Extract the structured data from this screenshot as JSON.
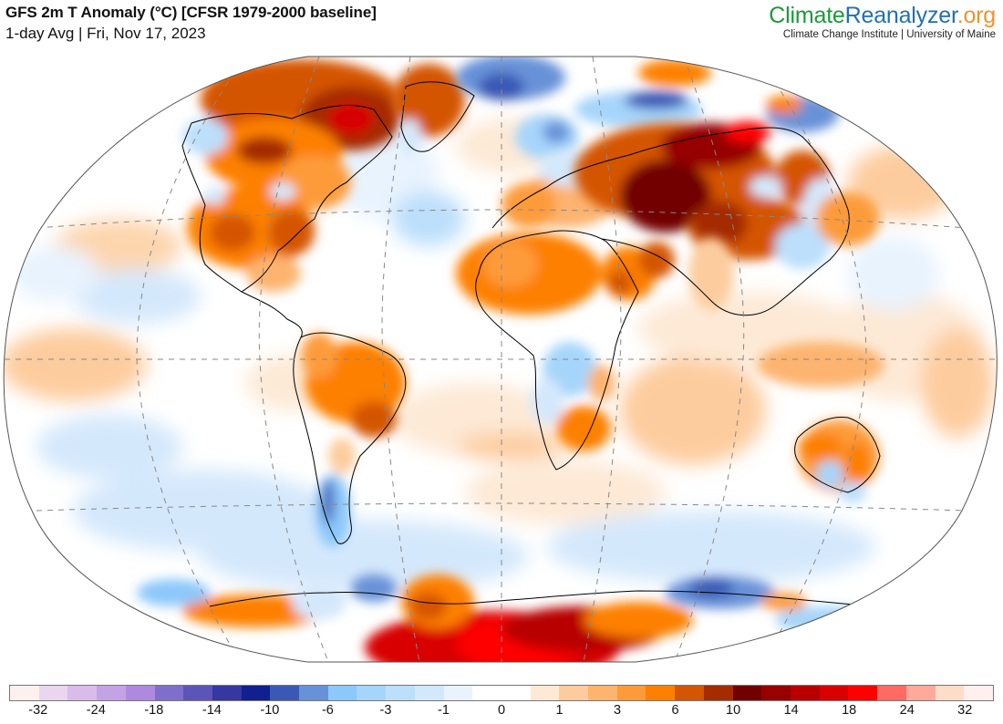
{
  "header": {
    "title": "GFS 2m T Anomaly (°C) [CFSR 1979-2000 baseline]",
    "subtitle": "1-day Avg | Fri, Nov 17, 2023"
  },
  "brand": {
    "logo_part1": "Climate",
    "logo_part2": "Reanalyzer",
    "logo_part3": ".org",
    "tagline": "Climate Change Institute | University of Maine",
    "colors": {
      "climate": "#1a9a3a",
      "reanalyzer": "#1f6fb8",
      "org": "#f2922b"
    }
  },
  "map": {
    "projection": "Winkel Tripel / Robinson-like world",
    "variable": "2m temperature anomaly",
    "units": "°C",
    "grid_lines": "dashed gray graticule",
    "regions": [
      {
        "name": "Central Asia / Kazakhstan",
        "anomaly": "strong warm (+10 to +18)"
      },
      {
        "name": "Canadian Arctic Archipelago",
        "anomaly": "strong warm (+10 to +18)"
      },
      {
        "name": "Antarctica interior",
        "anomaly": "very warm (+14 to +18)"
      },
      {
        "name": "Scandinavia / Barents Sea",
        "anomaly": "cold (-6 to -14)"
      },
      {
        "name": "Eastern Siberia",
        "anomaly": "cold (-3 to -10)"
      },
      {
        "name": "Central & Eastern USA",
        "anomaly": "warm (+3 to +10)"
      },
      {
        "name": "North Africa / Sahara",
        "anomaly": "warm (+3 to +6)"
      },
      {
        "name": "Brazil",
        "anomaly": "warm (+3 to +10)"
      },
      {
        "name": "Patagonia",
        "anomaly": "cold (-3 to -10)"
      },
      {
        "name": "Central Africa (Congo)",
        "anomaly": "cool (-1 to -3)"
      },
      {
        "name": "Australia interior",
        "anomaly": "mixed: warm north/west, cool south-central"
      },
      {
        "name": "Eastern China",
        "anomaly": "cool (-1 to -3)"
      }
    ]
  },
  "legend": {
    "bins": [
      "#fff0f0",
      "#ead6ef",
      "#d8bdea",
      "#c4a3e4",
      "#ad8ade",
      "#7f6fcb",
      "#5b55b7",
      "#3637a0",
      "#10208e",
      "#3b58b5",
      "#6792d8",
      "#8cc8fa",
      "#a6d5fb",
      "#bcdffb",
      "#d4e8fc",
      "#e8f3fe",
      "#ffffff",
      "#ffffff",
      "#fde9d6",
      "#fdcc9e",
      "#fdb46f",
      "#fd9b3a",
      "#fd8002",
      "#d45502",
      "#a42c00",
      "#720000",
      "#960000",
      "#b80000",
      "#d80000",
      "#fe0000",
      "#ff6b62",
      "#ffa99b",
      "#ffdcc8",
      "#ffefee"
    ],
    "labels": [
      {
        "text": "-32",
        "at": 1
      },
      {
        "text": "-24",
        "at": 3
      },
      {
        "text": "-18",
        "at": 5
      },
      {
        "text": "-14",
        "at": 7
      },
      {
        "text": "-10",
        "at": 9
      },
      {
        "text": "-6",
        "at": 11
      },
      {
        "text": "-3",
        "at": 13
      },
      {
        "text": "-1",
        "at": 15
      },
      {
        "text": "0",
        "at": 17
      },
      {
        "text": "1",
        "at": 19
      },
      {
        "text": "3",
        "at": 21
      },
      {
        "text": "6",
        "at": 23
      },
      {
        "text": "10",
        "at": 25
      },
      {
        "text": "14",
        "at": 27
      },
      {
        "text": "18",
        "at": 29
      },
      {
        "text": "24",
        "at": 31
      },
      {
        "text": "32",
        "at": 33
      }
    ]
  }
}
